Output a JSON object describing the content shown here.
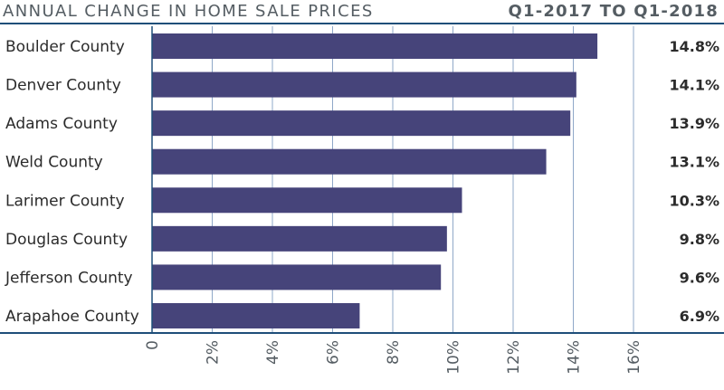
{
  "header": {
    "title": "ANNUAL CHANGE IN HOME SALE PRICES",
    "period": "Q1-2017 TO Q1-2018"
  },
  "colors": {
    "bar": "#46447a",
    "gridline": "#8fa8c8",
    "axis": "#1f4e79",
    "text": "#2b2b2b"
  },
  "chart_data": {
    "type": "bar",
    "orientation": "horizontal",
    "title": "ANNUAL CHANGE IN HOME SALE PRICES",
    "subtitle": "Q1-2017 TO Q1-2018",
    "categories": [
      "Boulder County",
      "Denver County",
      "Adams County",
      "Weld County",
      "Larimer County",
      "Douglas County",
      "Jefferson County",
      "Arapahoe County"
    ],
    "values": [
      14.8,
      14.1,
      13.9,
      13.1,
      10.3,
      9.8,
      9.6,
      6.9
    ],
    "value_labels": [
      "14.8%",
      "14.1%",
      "13.9%",
      "13.1%",
      "10.3%",
      "9.8%",
      "9.6%",
      "6.9%"
    ],
    "xlim": [
      0,
      16
    ],
    "xticks": [
      0,
      2,
      4,
      6,
      8,
      10,
      12,
      14,
      16
    ],
    "xtick_labels": [
      "0",
      "2%",
      "4%",
      "6%",
      "8%",
      "10%",
      "12%",
      "14%",
      "16%"
    ],
    "grid": true,
    "legend": "none"
  }
}
